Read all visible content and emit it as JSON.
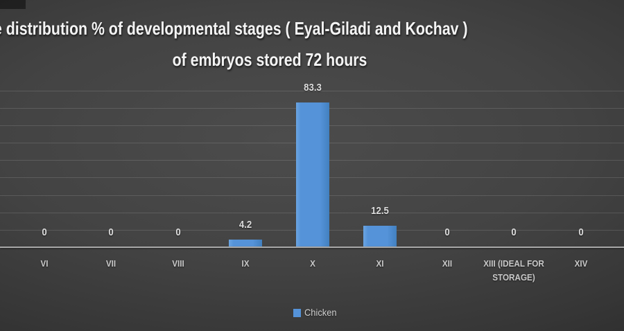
{
  "title": {
    "line1": "e distribution % of developmental stages ( Eyal-Giladi and Kochav )",
    "line2": "of embryos stored 72 hours"
  },
  "legend": {
    "label": "Chicken"
  },
  "chart_data": {
    "type": "bar",
    "title": "e distribution % of developmental stages ( Eyal-Giladi and Kochav ) of embryos stored 72 hours",
    "categories": [
      "VI",
      "VII",
      "VIII",
      "IX",
      "X",
      "XI",
      "XII",
      "XIII (IDEAL FOR STORAGE)",
      "XIV"
    ],
    "series": [
      {
        "name": "Chicken",
        "values": [
          0,
          0,
          0,
          4.2,
          83.3,
          12.5,
          0,
          0,
          0
        ]
      }
    ],
    "data_labels": [
      "0",
      "0",
      "0",
      "4.2",
      "83.3",
      "12.5",
      "0",
      "0",
      "0"
    ],
    "xlabel": "",
    "ylabel": "",
    "ylim": [
      0,
      90
    ],
    "gridline_step": 10,
    "grid": true,
    "legend_position": "bottom",
    "bar_color": "#5593d9"
  }
}
